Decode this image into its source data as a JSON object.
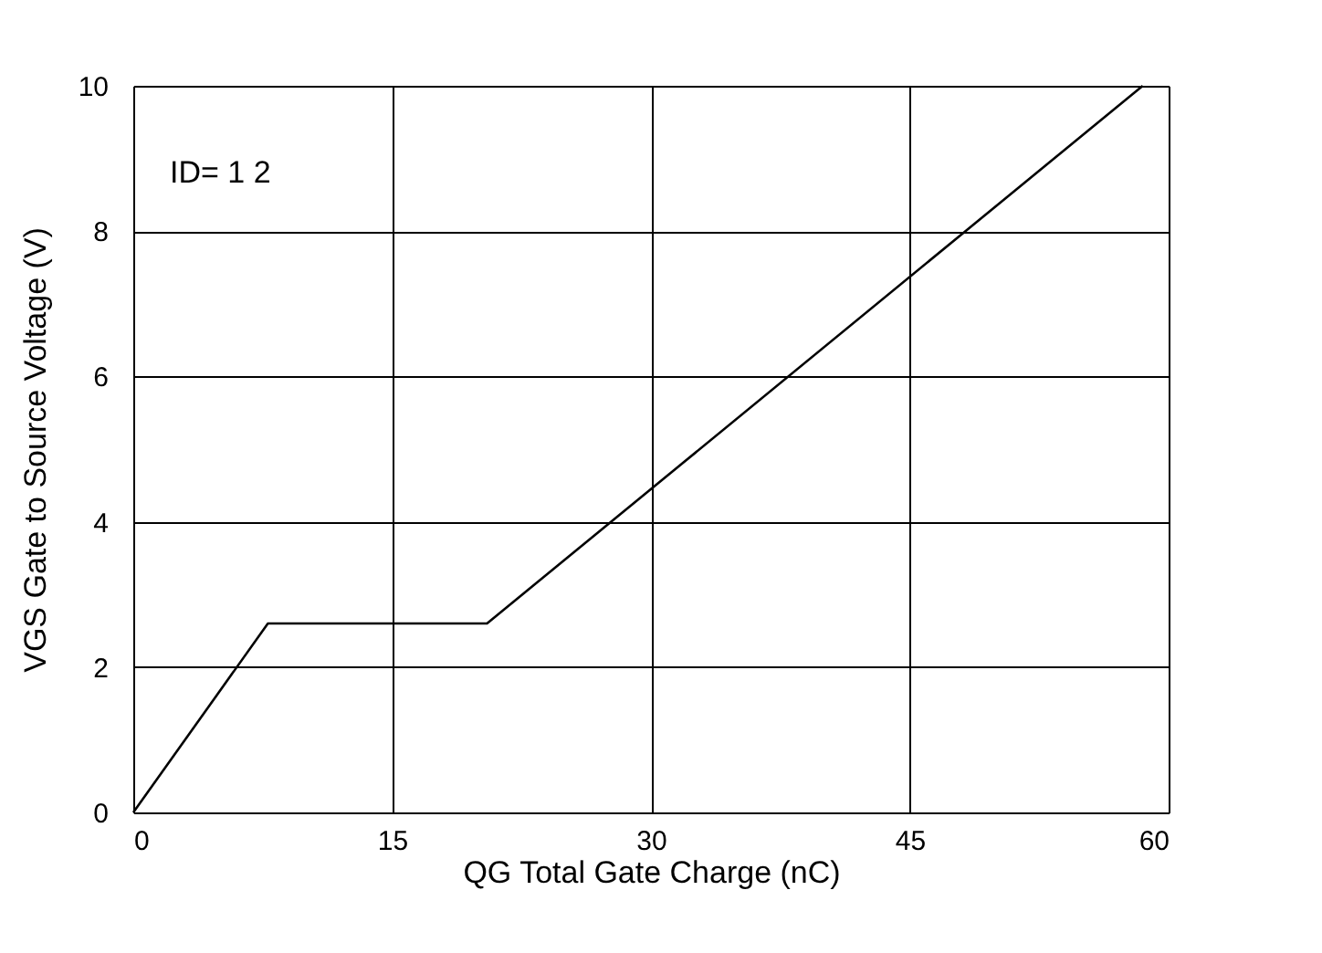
{
  "chart_data": {
    "type": "line",
    "xlabel": "QG  Total Gate Charge (nC)",
    "ylabel": "VGS  Gate to Source Voltage (V)",
    "annotations": [
      "ID= 1 2"
    ],
    "x": [
      0,
      7.8,
      20.5,
      58.5
    ],
    "series": [
      {
        "color": "#000000",
        "values": [
          0,
          2.6,
          2.6,
          10
        ]
      }
    ],
    "xlim": [
      0,
      60
    ],
    "xticks": [
      0,
      15,
      30,
      45,
      60
    ],
    "ylim": [
      0,
      10
    ],
    "yticks": [
      0,
      2,
      4,
      6,
      8,
      10
    ],
    "grid": true,
    "marker": "none",
    "line_style": "solid"
  }
}
